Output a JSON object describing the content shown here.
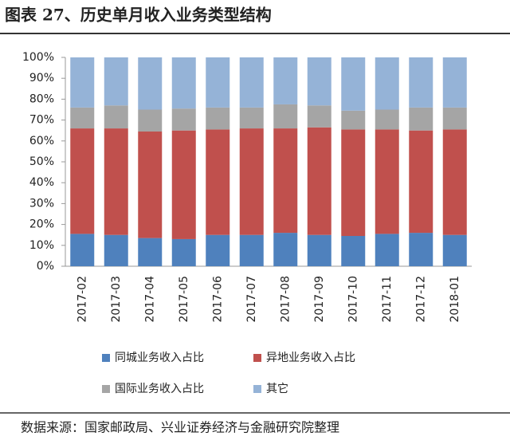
{
  "chart_data": {
    "type": "stacked-bar",
    "title": "图表 27、历史单月收入业务类型结构",
    "source": "数据来源：国家邮政局、兴业证券经济与金融研究院整理",
    "categories": [
      "2017-02",
      "2017-03",
      "2017-04",
      "2017-05",
      "2017-06",
      "2017-07",
      "2017-08",
      "2017-09",
      "2017-10",
      "2017-11",
      "2017-12",
      "2018-01"
    ],
    "series": [
      {
        "name": "同城业务收入占比",
        "color": "#4f81bd",
        "values": [
          15.5,
          15,
          13.5,
          13,
          15,
          15,
          16,
          15,
          14.5,
          15.5,
          16,
          15
        ]
      },
      {
        "name": "异地业务收入占比",
        "color": "#c0504d",
        "values": [
          50.5,
          51,
          51,
          52,
          50.5,
          51,
          50,
          51.5,
          51,
          50,
          49,
          50.5
        ]
      },
      {
        "name": "国际业务收入占比",
        "color": "#a5a5a5",
        "values": [
          10,
          11,
          10.5,
          10.5,
          10.5,
          10,
          11.5,
          10.5,
          9,
          9.5,
          11,
          10.5
        ]
      },
      {
        "name": "其它",
        "color": "#95b3d7",
        "values": [
          24,
          23,
          25,
          24.5,
          24,
          24,
          22.5,
          23,
          25.5,
          25,
          24,
          24
        ]
      }
    ],
    "ylim": [
      0,
      100
    ],
    "yticks": [
      {
        "value": 0,
        "label": "0%"
      },
      {
        "value": 10,
        "label": "10%"
      },
      {
        "value": 20,
        "label": "20%"
      },
      {
        "value": 30,
        "label": "30%"
      },
      {
        "value": 40,
        "label": "40%"
      },
      {
        "value": 50,
        "label": "50%"
      },
      {
        "value": 60,
        "label": "60%"
      },
      {
        "value": 70,
        "label": "70%"
      },
      {
        "value": 80,
        "label": "80%"
      },
      {
        "value": 90,
        "label": "90%"
      },
      {
        "value": 100,
        "label": "100%"
      }
    ],
    "grid": false
  }
}
